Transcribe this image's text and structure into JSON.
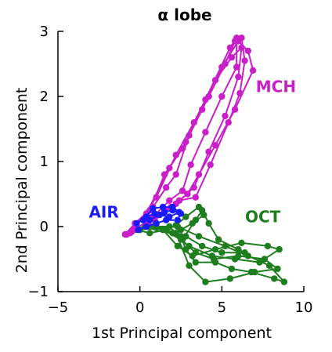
{
  "chart_data": {
    "type": "line",
    "title": "α lobe",
    "xlabel": "1st Principal component",
    "ylabel": "2nd Principal component",
    "xlim": [
      -5,
      10
    ],
    "ylim": [
      -1,
      3
    ],
    "xticks": [
      -5,
      0,
      5,
      10
    ],
    "yticks": [
      -1,
      0,
      1,
      2,
      3
    ],
    "grid": false,
    "series": [
      {
        "name": "AIR",
        "color": "#1a1aff",
        "trajectories": [
          [
            [
              -0.2,
              0.05
            ],
            [
              0.4,
              0.15
            ],
            [
              0.9,
              0.2
            ],
            [
              1.5,
              0.22
            ],
            [
              2.0,
              0.25
            ],
            [
              2.5,
              0.2
            ],
            [
              2.3,
              0.1
            ],
            [
              1.6,
              0.1
            ],
            [
              1.0,
              0.05
            ],
            [
              0.4,
              0.0
            ],
            [
              -0.1,
              -0.05
            ]
          ],
          [
            [
              0.2,
              0.1
            ],
            [
              0.8,
              0.28
            ],
            [
              1.4,
              0.3
            ],
            [
              2.0,
              0.3
            ],
            [
              2.4,
              0.22
            ],
            [
              1.8,
              0.15
            ],
            [
              1.2,
              0.18
            ],
            [
              0.6,
              0.1
            ]
          ]
        ]
      },
      {
        "name": "MCH",
        "color": "#c81fc8",
        "trajectories": [
          [
            [
              -0.9,
              -0.12
            ],
            [
              -0.3,
              0.05
            ],
            [
              0.8,
              0.3
            ],
            [
              1.6,
              0.6
            ],
            [
              2.2,
              0.8
            ],
            [
              3.0,
              1.4
            ],
            [
              4.2,
              2.0
            ],
            [
              5.2,
              2.5
            ],
            [
              5.8,
              2.85
            ],
            [
              6.2,
              2.9
            ],
            [
              6.4,
              2.55
            ],
            [
              6.1,
              2.05
            ],
            [
              5.4,
              1.6
            ],
            [
              4.3,
              0.95
            ],
            [
              3.4,
              0.45
            ],
            [
              2.4,
              0.4
            ],
            [
              1.5,
              0.25
            ],
            [
              0.6,
              0.1
            ],
            [
              -0.4,
              -0.05
            ]
          ],
          [
            [
              -0.6,
              -0.1
            ],
            [
              0.6,
              0.25
            ],
            [
              1.5,
              0.8
            ],
            [
              2.6,
              1.2
            ],
            [
              3.8,
              1.8
            ],
            [
              5.0,
              2.45
            ],
            [
              6.0,
              2.85
            ],
            [
              6.6,
              2.7
            ],
            [
              6.9,
              2.4
            ],
            [
              5.8,
              1.8
            ],
            [
              4.6,
              1.25
            ],
            [
              3.6,
              0.8
            ],
            [
              2.9,
              0.5
            ],
            [
              1.9,
              0.3
            ],
            [
              0.5,
              0.05
            ]
          ],
          [
            [
              -0.8,
              -0.12
            ],
            [
              0.4,
              0.2
            ],
            [
              1.8,
              0.9
            ],
            [
              2.8,
              1.3
            ],
            [
              4.0,
              1.95
            ],
            [
              5.5,
              2.75
            ],
            [
              5.9,
              2.9
            ],
            [
              5.9,
              2.45
            ],
            [
              5.0,
              2.0
            ],
            [
              4.0,
              1.45
            ],
            [
              3.1,
              0.95
            ],
            [
              2.6,
              0.55
            ],
            [
              1.8,
              0.4
            ],
            [
              0.8,
              0.15
            ]
          ],
          [
            [
              -0.5,
              -0.08
            ],
            [
              1.0,
              0.45
            ],
            [
              2.2,
              1.1
            ],
            [
              3.3,
              1.6
            ],
            [
              4.6,
              2.25
            ],
            [
              5.6,
              2.6
            ],
            [
              6.2,
              2.75
            ],
            [
              6.0,
              2.3
            ],
            [
              5.2,
              1.7
            ],
            [
              4.2,
              1.15
            ],
            [
              3.3,
              0.6
            ],
            [
              2.2,
              0.35
            ],
            [
              0.9,
              0.1
            ]
          ]
        ]
      },
      {
        "name": "OCT",
        "color": "#1e7d1e",
        "trajectories": [
          [
            [
              -0.2,
              -0.05
            ],
            [
              0.6,
              -0.1
            ],
            [
              1.6,
              -0.05
            ],
            [
              2.5,
              -0.15
            ],
            [
              2.8,
              -0.35
            ],
            [
              3.4,
              -0.55
            ],
            [
              4.6,
              -0.55
            ],
            [
              5.6,
              -0.65
            ],
            [
              6.8,
              -0.7
            ],
            [
              8.2,
              -0.8
            ],
            [
              8.8,
              -0.85
            ],
            [
              7.9,
              -0.6
            ],
            [
              6.6,
              -0.45
            ],
            [
              5.2,
              -0.3
            ],
            [
              3.6,
              -0.15
            ],
            [
              2.3,
              0.0
            ],
            [
              1.0,
              -0.02
            ],
            [
              0.0,
              -0.05
            ]
          ],
          [
            [
              0.3,
              0.0
            ],
            [
              1.4,
              -0.05
            ],
            [
              2.3,
              -0.3
            ],
            [
              3.2,
              -0.45
            ],
            [
              4.6,
              -0.35
            ],
            [
              6.2,
              -0.25
            ],
            [
              7.8,
              -0.3
            ],
            [
              8.5,
              -0.35
            ],
            [
              7.3,
              -0.55
            ],
            [
              5.8,
              -0.5
            ],
            [
              4.4,
              -0.45
            ],
            [
              3.0,
              -0.3
            ],
            [
              2.0,
              -0.1
            ],
            [
              0.8,
              0.0
            ]
          ],
          [
            [
              0.0,
              -0.05
            ],
            [
              1.0,
              0.0
            ],
            [
              2.2,
              -0.1
            ],
            [
              3.0,
              -0.6
            ],
            [
              4.0,
              -0.85
            ],
            [
              5.5,
              -0.8
            ],
            [
              7.0,
              -0.7
            ],
            [
              8.4,
              -0.65
            ],
            [
              7.6,
              -0.5
            ],
            [
              6.0,
              -0.45
            ],
            [
              4.5,
              -0.5
            ],
            [
              3.4,
              -0.4
            ],
            [
              2.5,
              -0.2
            ],
            [
              1.4,
              -0.05
            ]
          ],
          [
            [
              0.6,
              0.0
            ],
            [
              1.8,
              0.0
            ],
            [
              2.6,
              -0.2
            ],
            [
              3.4,
              0.1
            ],
            [
              3.8,
              0.25
            ],
            [
              4.2,
              0.05
            ],
            [
              4.8,
              -0.2
            ],
            [
              6.0,
              -0.35
            ],
            [
              6.4,
              -0.4
            ],
            [
              5.0,
              -0.4
            ],
            [
              3.8,
              -0.3
            ],
            [
              2.8,
              -0.15
            ],
            [
              1.6,
              -0.05
            ]
          ],
          [
            [
              2.2,
              0.02
            ],
            [
              2.8,
              0.15
            ],
            [
              3.6,
              0.3
            ],
            [
              3.9,
              0.18
            ],
            [
              3.2,
              0.05
            ],
            [
              2.5,
              -0.05
            ]
          ]
        ]
      }
    ],
    "annotations": [
      {
        "text": "AIR",
        "x": -2.2,
        "y": 0.22,
        "color": "#1a1aff"
      },
      {
        "text": "MCH",
        "x": 8.3,
        "y": 2.15,
        "color": "#c81fc8"
      },
      {
        "text": "OCT",
        "x": 7.5,
        "y": 0.15,
        "color": "#1e7d1e"
      }
    ]
  }
}
